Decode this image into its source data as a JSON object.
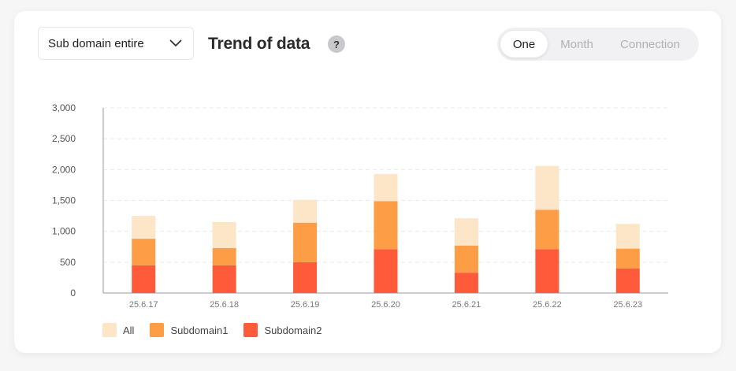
{
  "controls": {
    "dropdown_value": "Sub domain entire",
    "title": "Trend of data",
    "help_label": "?",
    "tabs": [
      {
        "label": "One",
        "active": true
      },
      {
        "label": "Month",
        "active": false
      },
      {
        "label": "Connection",
        "active": false
      }
    ]
  },
  "colors": {
    "all": "#fde5c8",
    "subdomain1": "#fd9d45",
    "subdomain2": "#ff5a3a"
  },
  "chart_data": {
    "type": "bar",
    "stacked": true,
    "categories": [
      "25.6.17",
      "25.6.18",
      "25.6.19",
      "25.6.20",
      "25.6.21",
      "25.6.22",
      "25.6.23"
    ],
    "series": [
      {
        "name": "Subdomain2",
        "values": [
          450,
          450,
          500,
          710,
          330,
          710,
          400
        ]
      },
      {
        "name": "Subdomain1",
        "values": [
          430,
          280,
          640,
          780,
          440,
          640,
          320
        ]
      },
      {
        "name": "All",
        "values": [
          370,
          420,
          370,
          440,
          440,
          710,
          400
        ]
      }
    ],
    "ylim": [
      0,
      3000
    ],
    "yticks": [
      "0",
      "500",
      "1,000",
      "1,500",
      "2,000",
      "2,500",
      "3,000"
    ],
    "grid": true,
    "legend": [
      "All",
      "Subdomain1",
      "Subdomain2"
    ],
    "legend_position": "bottom-left"
  }
}
